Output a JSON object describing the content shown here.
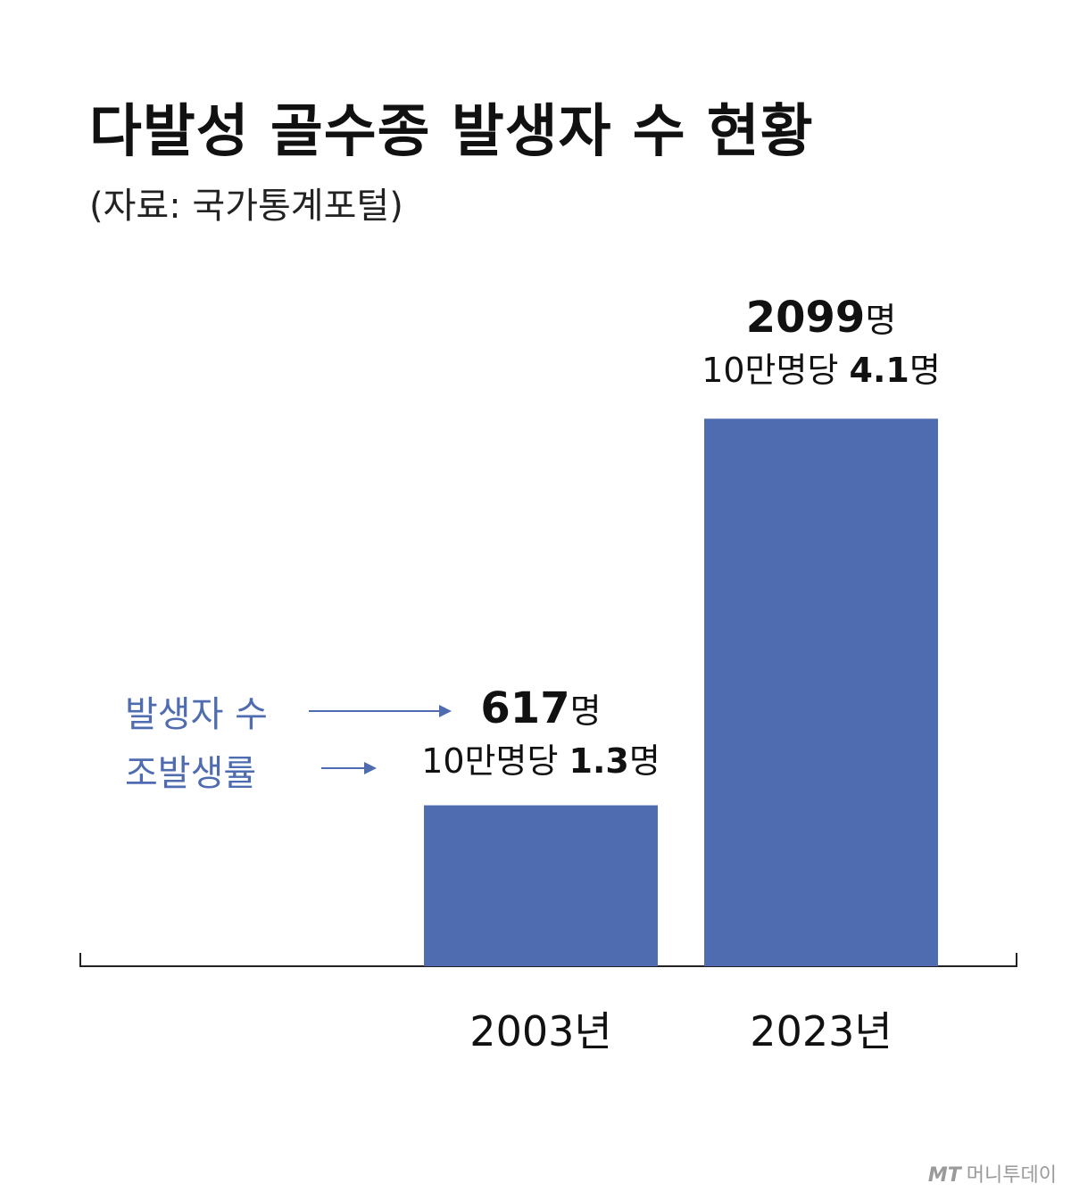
{
  "header": {
    "title": "다발성 골수종 발생자 수 현황",
    "source": "(자료: 국가통계포털)"
  },
  "legend": {
    "count_label": "발생자 수",
    "rate_label": "조발생률"
  },
  "colors": {
    "bar": "#4f6cb0",
    "legend_text": "#4f6cb0",
    "axis": "#222222",
    "text": "#111111"
  },
  "chart_data": {
    "type": "bar",
    "categories": [
      "2003년",
      "2023년"
    ],
    "series": [
      {
        "values": [
          617,
          2099
        ]
      }
    ],
    "rates": [
      1.3,
      4.1
    ],
    "data_labels": [
      {
        "count": "617",
        "count_unit": "명",
        "rate_prefix": "10만명당 ",
        "rate": "1.3",
        "rate_unit": "명"
      },
      {
        "count": "2099",
        "count_unit": "명",
        "rate_prefix": "10만명당 ",
        "rate": "4.1",
        "rate_unit": "명"
      }
    ],
    "title": "다발성 골수종 발생자 수 현황",
    "xlabel": "",
    "ylabel": "",
    "ylim": [
      0,
      2100
    ],
    "grid": false
  },
  "footer": {
    "logo_mark": "MT",
    "logo_text": "머니투데이"
  }
}
